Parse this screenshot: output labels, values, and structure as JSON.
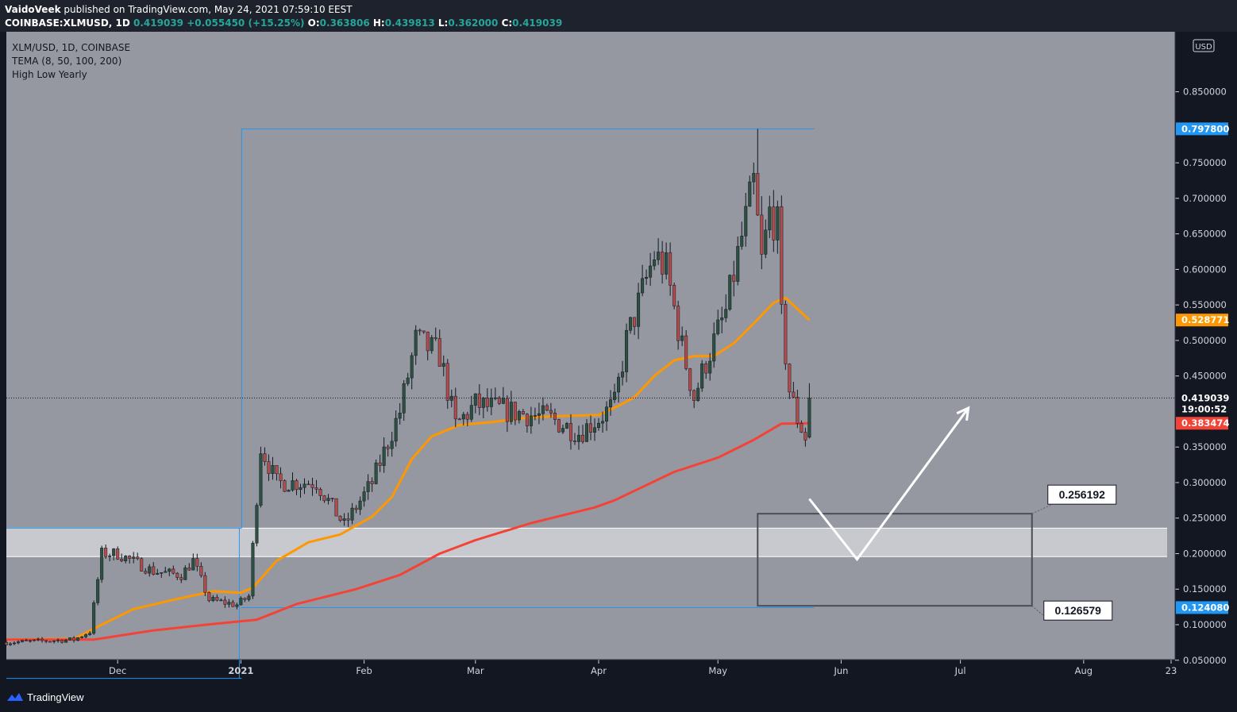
{
  "header": {
    "author": "VaidoVeek",
    "published_text": "published on TradingView.com, May 24, 2021 07:59:10 EEST",
    "symbol": "COINBASE:XLMUSD, 1D",
    "last": "0.419039",
    "change": "+0.055450 (+15.25%)",
    "o_label": "O:",
    "open": "0.363806",
    "h_label": "H:",
    "high": "0.439813",
    "l_label": "L:",
    "low": "0.362000",
    "c_label": "C:",
    "close": "0.419039"
  },
  "legend": {
    "symbol": "XLM/USD, 1D, COINBASE",
    "indicator1": "TEMA (8, 50, 100, 200)",
    "indicator2": "High Low Yearly"
  },
  "footer": {
    "brand": "TradingView"
  },
  "colors": {
    "plot_bg": "#9598a1",
    "axis_bg": "#131722",
    "axis_text": "#d1d4dc",
    "tema_orange": "#ff9800",
    "tema_red": "#f44336",
    "yearly_line": "#2196f3",
    "candle_up": "#2d5140",
    "candle_down": "#b44c4c",
    "annotation": "#ffffff",
    "box": "#4a4d55",
    "zone": "#d9dadd"
  },
  "chart_data": {
    "type": "candlestick",
    "title": "XLM/USD, 1D, COINBASE",
    "currency": "USD",
    "y_range": [
      0.0,
      0.88
    ],
    "y_ticks": [
      "0.850000",
      "0.750000",
      "0.700000",
      "0.650000",
      "0.600000",
      "0.550000",
      "0.500000",
      "0.450000",
      "0.350000",
      "0.300000",
      "0.250000",
      "0.200000",
      "0.150000",
      "0.100000",
      "0.050000"
    ],
    "x_range": [
      "2020-11-03",
      "2021-08-24"
    ],
    "x_ticks": [
      {
        "label": "Dec",
        "date": "2020-12-01"
      },
      {
        "label": "2021",
        "date": "2021-01-01"
      },
      {
        "label": "Feb",
        "date": "2021-02-01"
      },
      {
        "label": "Mar",
        "date": "2021-03-01"
      },
      {
        "label": "Apr",
        "date": "2021-04-01"
      },
      {
        "label": "May",
        "date": "2021-05-01"
      },
      {
        "label": "Jun",
        "date": "2021-06-01"
      },
      {
        "label": "Jul",
        "date": "2021-07-01"
      },
      {
        "label": "Aug",
        "date": "2021-08-01"
      },
      {
        "label": "23",
        "date": "2021-08-23"
      }
    ],
    "price_labels": [
      {
        "text": "0.797800",
        "value": 0.7978,
        "color": "#2196f3"
      },
      {
        "text": "0.528771",
        "value": 0.528771,
        "color": "#ff9800"
      },
      {
        "text": "0.419039",
        "value": 0.419039,
        "color": "#131722"
      },
      {
        "text": "19:00:52",
        "value": 0.399,
        "color": "#131722"
      },
      {
        "text": "0.383474",
        "value": 0.383474,
        "color": "#f44336"
      },
      {
        "text": "0.124080",
        "value": 0.12408,
        "color": "#2196f3"
      }
    ],
    "last_price": 0.419039,
    "yearly_high_low": [
      {
        "from": "2020-11-03",
        "to": "2020-12-31",
        "high": 0.2358,
        "low": 0.0245
      },
      {
        "from": "2021-01-01",
        "to": "2021-05-24",
        "high": 0.7978,
        "low": 0.12408
      }
    ],
    "support_zone": {
      "from": "2020-11-03",
      "to": "2021-08-22",
      "top": 0.2358,
      "bottom": 0.1958
    },
    "target_box": {
      "from": "2021-05-11",
      "to": "2021-07-19",
      "top": 0.256192,
      "bottom": 0.126579
    },
    "box_labels": [
      {
        "text": "0.256192",
        "value": 0.256192,
        "date": "2021-07-21"
      },
      {
        "text": "0.126579",
        "value": 0.126579,
        "date": "2021-07-20"
      }
    ],
    "projection": [
      {
        "date": "2021-05-24",
        "value": 0.277
      },
      {
        "date": "2021-06-05",
        "value": 0.192
      },
      {
        "date": "2021-07-03",
        "value": 0.405
      }
    ],
    "series": [
      {
        "name": "TEMA 50",
        "color": "#ff9800",
        "points": [
          [
            "2020-11-03",
            0.079
          ],
          [
            "2020-11-20",
            0.08
          ],
          [
            "2020-11-27",
            0.1
          ],
          [
            "2020-12-05",
            0.122
          ],
          [
            "2020-12-15",
            0.135
          ],
          [
            "2020-12-25",
            0.147
          ],
          [
            "2021-01-01",
            0.145
          ],
          [
            "2021-01-04",
            0.152
          ],
          [
            "2021-01-10",
            0.19
          ],
          [
            "2021-01-18",
            0.216
          ],
          [
            "2021-01-26",
            0.227
          ],
          [
            "2021-02-03",
            0.252
          ],
          [
            "2021-02-08",
            0.28
          ],
          [
            "2021-02-13",
            0.333
          ],
          [
            "2021-02-18",
            0.365
          ],
          [
            "2021-02-25",
            0.381
          ],
          [
            "2021-03-05",
            0.385
          ],
          [
            "2021-03-15",
            0.392
          ],
          [
            "2021-03-25",
            0.394
          ],
          [
            "2021-04-01",
            0.395
          ],
          [
            "2021-04-06",
            0.408
          ],
          [
            "2021-04-10",
            0.42
          ],
          [
            "2021-04-15",
            0.45
          ],
          [
            "2021-04-20",
            0.472
          ],
          [
            "2021-04-25",
            0.478
          ],
          [
            "2021-04-30",
            0.478
          ],
          [
            "2021-05-05",
            0.496
          ],
          [
            "2021-05-10",
            0.524
          ],
          [
            "2021-05-15",
            0.553
          ],
          [
            "2021-05-18",
            0.56
          ],
          [
            "2021-05-24",
            0.528771
          ]
        ]
      },
      {
        "name": "TEMA 200",
        "color": "#f44336",
        "points": [
          [
            "2020-11-03",
            0.079
          ],
          [
            "2020-11-25",
            0.079
          ],
          [
            "2020-12-10",
            0.092
          ],
          [
            "2020-12-25",
            0.101
          ],
          [
            "2021-01-05",
            0.107
          ],
          [
            "2021-01-15",
            0.129
          ],
          [
            "2021-01-30",
            0.15
          ],
          [
            "2021-02-10",
            0.17
          ],
          [
            "2021-02-20",
            0.2
          ],
          [
            "2021-03-01",
            0.219
          ],
          [
            "2021-03-15",
            0.243
          ],
          [
            "2021-03-31",
            0.265
          ],
          [
            "2021-04-05",
            0.275
          ],
          [
            "2021-04-20",
            0.315
          ],
          [
            "2021-05-01",
            0.335
          ],
          [
            "2021-05-10",
            0.36
          ],
          [
            "2021-05-17",
            0.383
          ],
          [
            "2021-05-24",
            0.383474
          ]
        ]
      }
    ],
    "candles": []
  }
}
